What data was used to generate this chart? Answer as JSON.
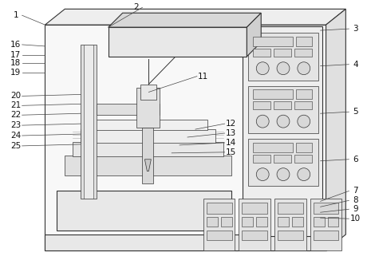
{
  "bg_color": "#ffffff",
  "lc": "#333333",
  "fc_light": "#f0f0f0",
  "fc_mid": "#e0e0e0",
  "fc_dark": "#cccccc",
  "figsize": [
    4.65,
    3.41
  ],
  "dpi": 100
}
